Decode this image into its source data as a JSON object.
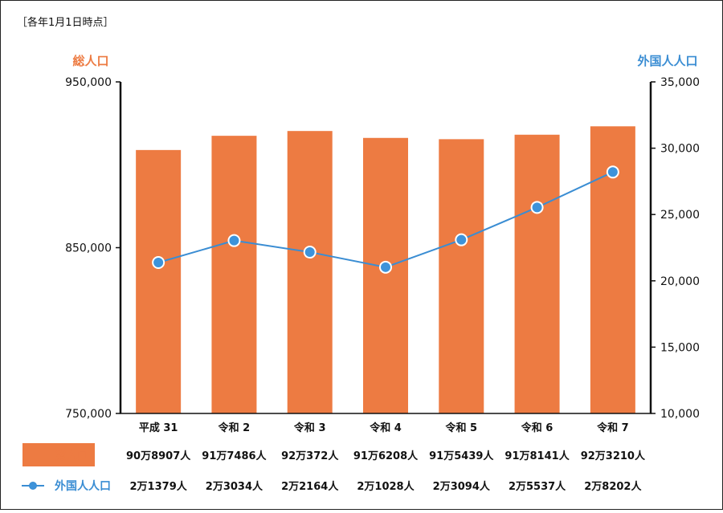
{
  "note": "［各年1月1日時点］",
  "colors": {
    "bar": "#ED7B42",
    "line": "#3A8DD3",
    "point_fill": "#3D93DA",
    "axis": "#111111",
    "left_label": "#ED7B42",
    "right_label": "#3A8DD3"
  },
  "chart_data": {
    "type": "bar",
    "categories": [
      "平成 31",
      "令和 2",
      "令和 3",
      "令和 4",
      "令和 5",
      "令和 6",
      "令和 7"
    ],
    "series": [
      {
        "name": "総人口",
        "type": "bar",
        "axis": "left",
        "values": [
          908907,
          917486,
          920372,
          916208,
          915439,
          918141,
          923210
        ],
        "labels": [
          "90万8907人",
          "91万7486人",
          "92万372人",
          "91万6208人",
          "91万5439人",
          "91万8141人",
          "92万3210人"
        ]
      },
      {
        "name": "外国人人口",
        "type": "line",
        "axis": "right",
        "values": [
          21379,
          23034,
          22164,
          21028,
          23094,
          25537,
          28202
        ],
        "labels": [
          "2万1379人",
          "2万3034人",
          "2万2164人",
          "2万1028人",
          "2万3094人",
          "2万5537人",
          "2万8202人"
        ]
      }
    ],
    "y_left": {
      "title": "総人口",
      "range": [
        750000,
        950000
      ],
      "ticks": [
        "750,000",
        "850,000",
        "950,000"
      ]
    },
    "y_right": {
      "title": "外国人人口",
      "range": [
        10000,
        35000
      ],
      "ticks": [
        "10,000",
        "15,000",
        "20,000",
        "25,000",
        "30,000",
        "35,000"
      ]
    },
    "grid": false,
    "legend": "bottom-left table"
  }
}
